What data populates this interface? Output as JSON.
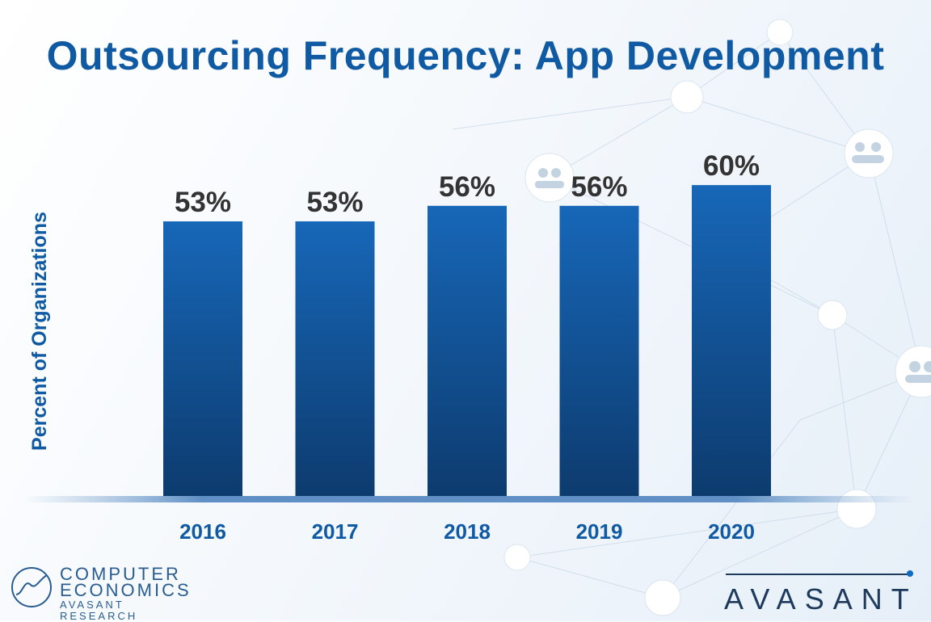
{
  "chart_data": {
    "type": "bar",
    "title": "Outsourcing Frequency: App Development",
    "categories": [
      "2016",
      "2017",
      "2018",
      "2019",
      "2020"
    ],
    "values": [
      53,
      53,
      56,
      56,
      60
    ],
    "value_labels": [
      "53%",
      "53%",
      "56%",
      "56%",
      "60%"
    ],
    "xlabel": "",
    "ylabel": "Percent of Organizations",
    "ylim": [
      0,
      70
    ],
    "grid": false,
    "bar_color_top": "#1767b8",
    "bar_color_bottom": "#0d3b6e"
  },
  "branding": {
    "left_logo": {
      "line1": "COMPUTER",
      "line2": "ECONOMICS",
      "line3": "AVASANT RESEARCH"
    },
    "right_logo": {
      "text": "AVASANT"
    }
  },
  "colors": {
    "title": "#0f5aa3",
    "axis_text": "#0f5aa3",
    "value_text": "#333333"
  }
}
